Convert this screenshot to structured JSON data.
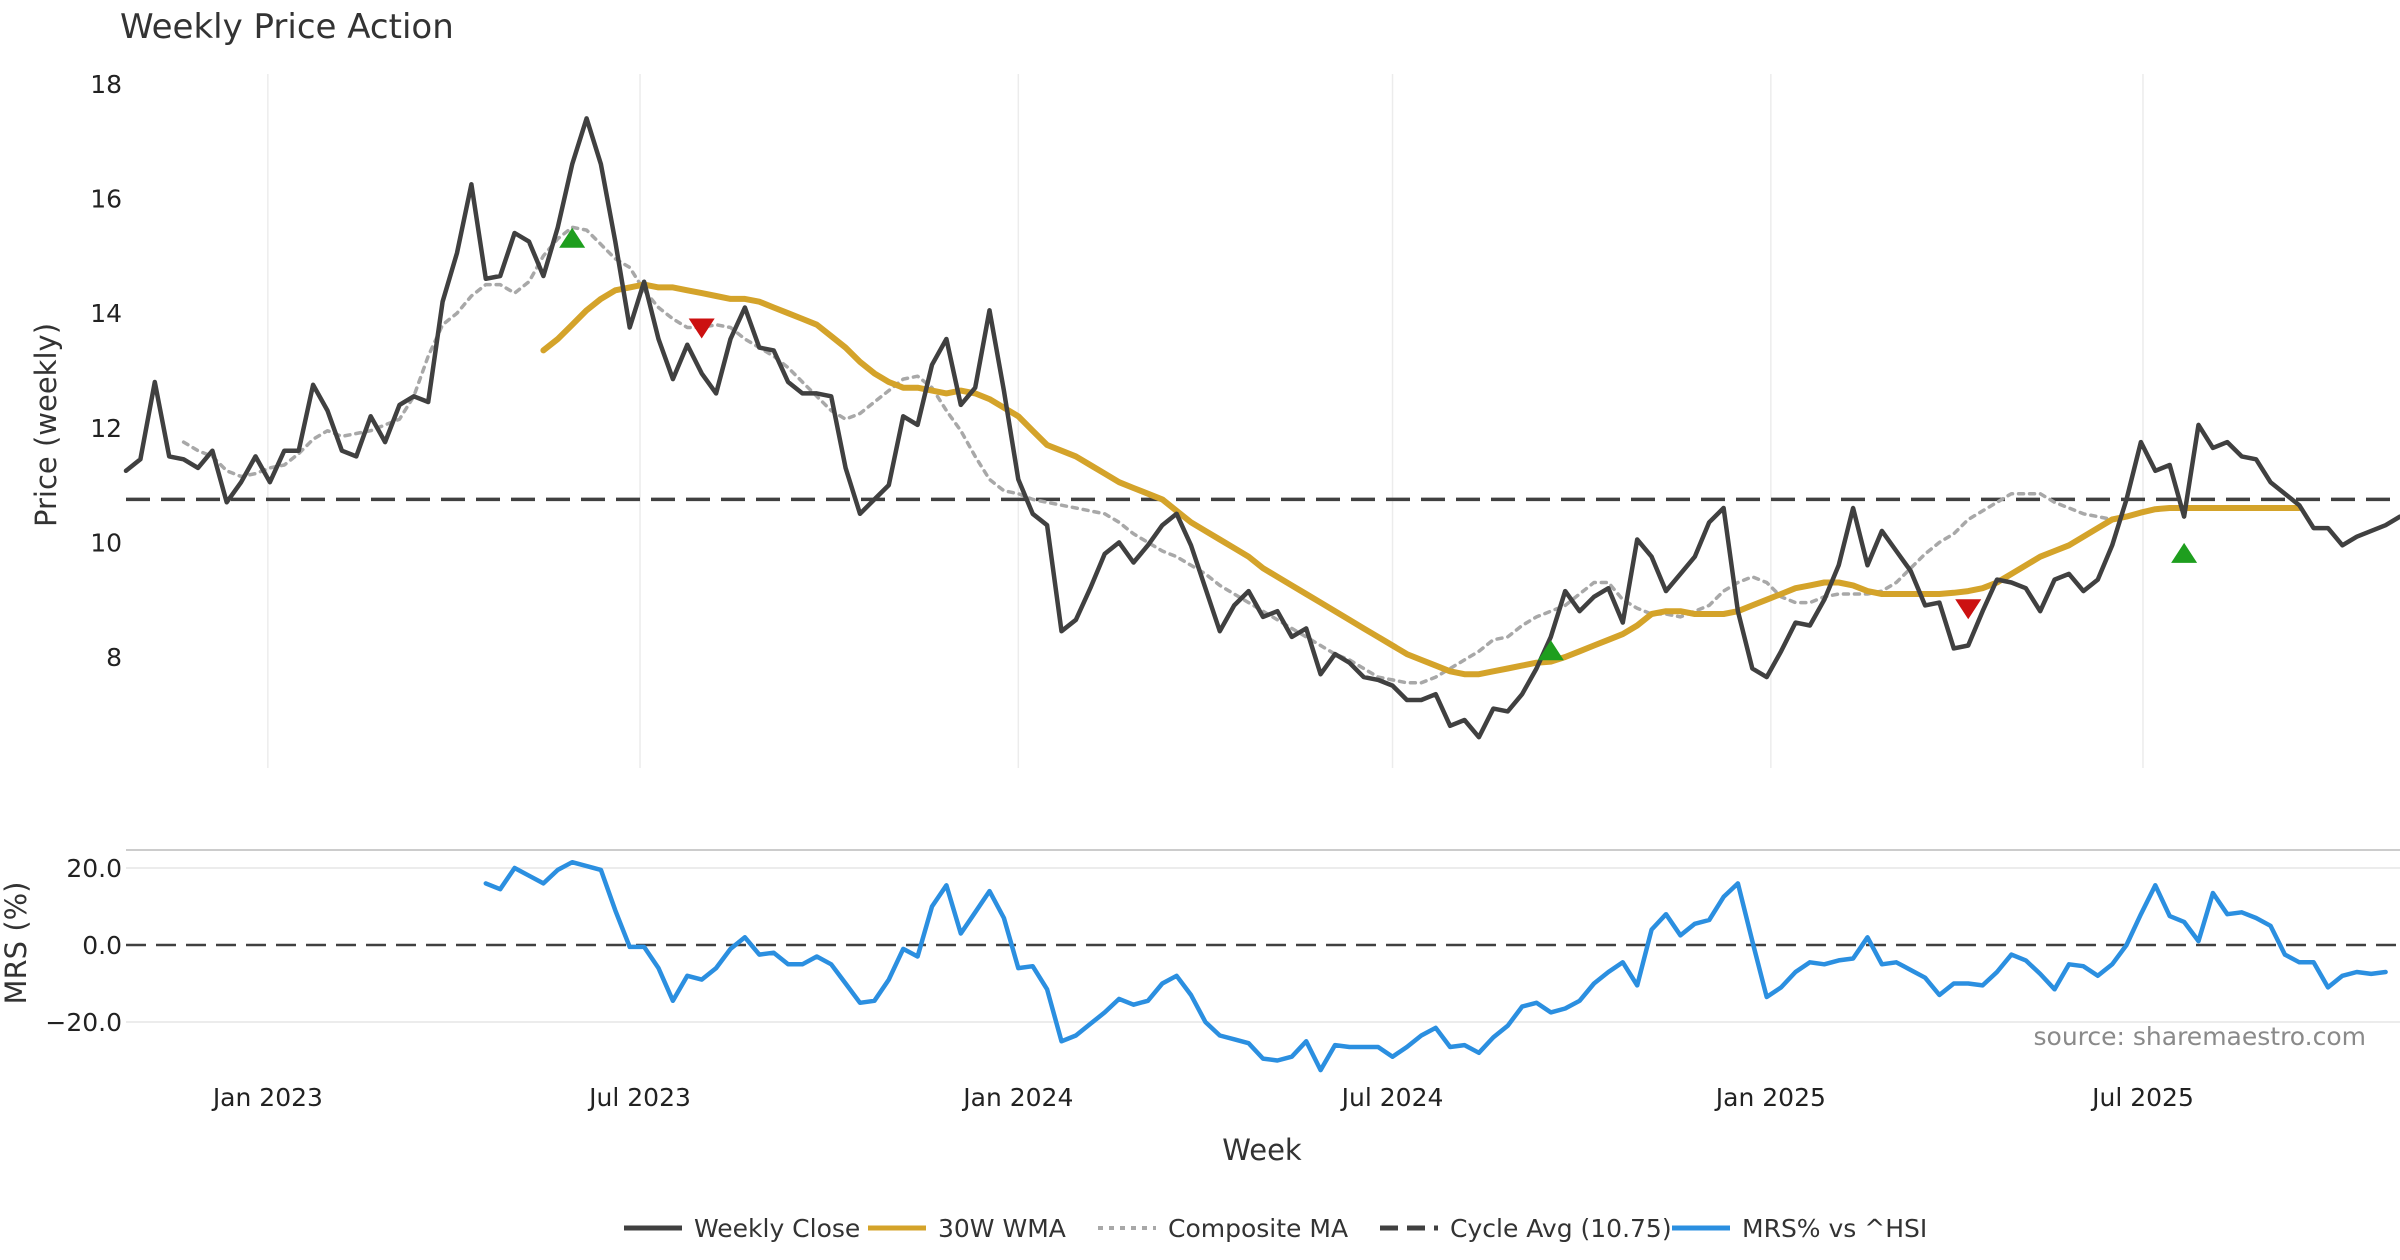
{
  "chart_data": [
    {
      "type": "line",
      "title": "Weekly Price Action",
      "ylabel": "Price (weekly)",
      "xlabel": "Week",
      "ylim": [
        6,
        18
      ],
      "yticks": [
        8,
        10,
        12,
        14,
        16,
        18
      ],
      "x_start": "2022-10-24",
      "x_step_days": 7,
      "x_tick_dates": [
        "2023-01-01",
        "2023-07-01",
        "2024-01-01",
        "2024-07-01",
        "2025-01-01",
        "2025-07-01"
      ],
      "x_tick_labels": [
        "Jan 2023",
        "Jul 2023",
        "Jan 2024",
        "Jul 2024",
        "Jan 2025",
        "Jul 2025"
      ],
      "x_end": "2025-11-03",
      "cycle_avg": 10.75,
      "series": [
        {
          "name": "Weekly Close",
          "color": "#404040",
          "values": [
            11.25,
            11.45,
            12.8,
            11.5,
            11.45,
            11.3,
            11.6,
            10.7,
            11.05,
            11.5,
            11.05,
            11.6,
            11.6,
            12.75,
            12.3,
            11.6,
            11.5,
            12.2,
            11.75,
            12.4,
            12.55,
            12.45,
            14.2,
            15.05,
            16.25,
            14.6,
            14.65,
            15.4,
            15.25,
            14.65,
            15.5,
            16.6,
            17.4,
            16.6,
            15.25,
            13.75,
            14.55,
            13.55,
            12.85,
            13.45,
            12.95,
            12.6,
            13.55,
            14.1,
            13.4,
            13.35,
            12.8,
            12.6,
            12.6,
            12.55,
            11.3,
            10.5,
            10.75,
            11.0,
            12.2,
            12.05,
            13.1,
            13.55,
            12.4,
            12.7,
            14.05,
            12.65,
            11.1,
            10.5,
            10.3,
            8.45,
            8.65,
            9.2,
            9.8,
            10.0,
            9.65,
            9.95,
            10.3,
            10.5,
            9.95,
            9.2,
            8.45,
            8.9,
            9.15,
            8.7,
            8.8,
            8.35,
            8.5,
            7.7,
            8.05,
            7.9,
            7.65,
            7.6,
            7.5,
            7.25,
            7.25,
            7.35,
            6.8,
            6.9,
            6.6,
            7.1,
            7.05,
            7.35,
            7.8,
            8.35,
            9.15,
            8.8,
            9.05,
            9.2,
            8.6,
            10.05,
            9.75,
            9.15,
            9.45,
            9.75,
            10.35,
            10.6,
            8.8,
            7.8,
            7.65,
            8.1,
            8.6,
            8.55,
            9.0,
            9.6,
            10.6,
            9.6,
            10.2,
            9.85,
            9.5,
            8.9,
            8.95,
            8.15,
            8.2,
            8.8,
            9.35,
            9.3,
            9.2,
            8.8,
            9.35,
            9.45,
            9.15,
            9.35,
            9.95,
            10.75,
            11.75,
            11.25,
            11.35,
            10.45,
            12.05,
            11.65,
            11.75,
            11.5,
            11.45,
            11.05,
            10.85,
            10.65,
            10.25,
            10.25,
            9.95,
            10.1,
            10.2,
            10.3,
            10.45
          ]
        },
        {
          "name": "30W WMA",
          "color": "#d4a32a",
          "start_index": 29,
          "values": [
            13.35,
            13.55,
            13.8,
            14.05,
            14.25,
            14.4,
            14.45,
            14.5,
            14.45,
            14.45,
            14.4,
            14.35,
            14.3,
            14.25,
            14.25,
            14.2,
            14.1,
            14.0,
            13.9,
            13.8,
            13.6,
            13.4,
            13.15,
            12.95,
            12.8,
            12.7,
            12.7,
            12.65,
            12.6,
            12.65,
            12.6,
            12.5,
            12.35,
            12.2,
            11.95,
            11.7,
            11.6,
            11.5,
            11.35,
            11.2,
            11.05,
            10.95,
            10.85,
            10.75,
            10.55,
            10.35,
            10.2,
            10.05,
            9.9,
            9.75,
            9.55,
            9.4,
            9.25,
            9.1,
            8.95,
            8.8,
            8.65,
            8.5,
            8.35,
            8.2,
            8.05,
            7.95,
            7.85,
            7.75,
            7.7,
            7.7,
            7.75,
            7.8,
            7.85,
            7.9,
            7.92,
            8.0,
            8.1,
            8.2,
            8.3,
            8.4,
            8.55,
            8.75,
            8.8,
            8.8,
            8.75,
            8.75,
            8.75,
            8.8,
            8.9,
            9.0,
            9.1,
            9.2,
            9.25,
            9.3,
            9.3,
            9.25,
            9.15,
            9.1,
            9.1,
            9.1,
            9.1,
            9.1,
            9.12,
            9.15,
            9.2,
            9.3,
            9.45,
            9.6,
            9.75,
            9.85,
            9.95,
            10.1,
            10.25,
            10.4,
            10.45,
            10.52,
            10.58,
            10.6,
            10.6,
            10.6,
            10.6,
            10.6,
            10.6,
            10.6,
            10.6,
            10.6,
            10.6
          ]
        },
        {
          "name": "Composite MA",
          "color": "#a8a8a8",
          "start_index": 4,
          "values": [
            11.75,
            11.6,
            11.5,
            11.25,
            11.15,
            11.2,
            11.3,
            11.35,
            11.55,
            11.8,
            11.95,
            11.85,
            11.9,
            11.95,
            12.05,
            12.15,
            12.55,
            13.25,
            13.8,
            14.0,
            14.3,
            14.5,
            14.5,
            14.35,
            14.55,
            15.0,
            15.3,
            15.5,
            15.45,
            15.2,
            14.95,
            14.8,
            14.4,
            14.1,
            13.9,
            13.75,
            13.75,
            13.8,
            13.75,
            13.55,
            13.4,
            13.25,
            13.05,
            12.8,
            12.55,
            12.3,
            12.15,
            12.25,
            12.45,
            12.65,
            12.85,
            12.9,
            12.7,
            12.3,
            11.95,
            11.5,
            11.1,
            10.9,
            10.85,
            10.75,
            10.7,
            10.65,
            10.6,
            10.55,
            10.5,
            10.35,
            10.15,
            10.0,
            9.85,
            9.75,
            9.6,
            9.45,
            9.25,
            9.1,
            8.95,
            8.8,
            8.65,
            8.5,
            8.35,
            8.2,
            8.05,
            7.95,
            7.8,
            7.65,
            7.6,
            7.55,
            7.55,
            7.65,
            7.8,
            7.95,
            8.1,
            8.3,
            8.35,
            8.55,
            8.7,
            8.8,
            8.9,
            9.1,
            9.3,
            9.3,
            9.0,
            8.85,
            8.75,
            8.75,
            8.7,
            8.8,
            8.9,
            9.15,
            9.3,
            9.4,
            9.3,
            9.05,
            8.95,
            8.95,
            9.05,
            9.1,
            9.1,
            9.1,
            9.15,
            9.3,
            9.55,
            9.8,
            10.0,
            10.15,
            10.4,
            10.55,
            10.7,
            10.85,
            10.85,
            10.85,
            10.7,
            10.6,
            10.5,
            10.45,
            10.4
          ]
        }
      ],
      "markers": [
        {
          "type": "buy",
          "index": 31,
          "value": 15.3,
          "color": "#1e9e1e"
        },
        {
          "type": "sell",
          "index": 40,
          "value": 13.75,
          "color": "#cc1111"
        },
        {
          "type": "buy",
          "index": 99,
          "value": 8.1,
          "color": "#1e9e1e"
        },
        {
          "type": "sell",
          "index": 128,
          "value": 8.85,
          "color": "#cc1111"
        },
        {
          "type": "buy",
          "index": 143,
          "value": 9.8,
          "color": "#1e9e1e"
        }
      ]
    },
    {
      "type": "line",
      "ylabel": "MRS (%)",
      "ylim": [
        -33,
        25
      ],
      "yticks": [
        20,
        0,
        -20
      ],
      "ytick_labels": [
        "20.0",
        "0.0",
        "−20.0"
      ],
      "zero_line": 0,
      "series": [
        {
          "name": "MRS% vs ^HSI",
          "color": "#2b8fe0",
          "start_index": 25,
          "values": [
            16.0,
            14.5,
            20.0,
            18.0,
            16.0,
            19.5,
            21.5,
            20.5,
            19.5,
            9.0,
            -0.5,
            -0.5,
            -6.0,
            -14.5,
            -8.0,
            -9.0,
            -6.0,
            -1.0,
            2.0,
            -2.5,
            -2.0,
            -5.0,
            -5.0,
            -3.0,
            -5.0,
            -10.0,
            -15.0,
            -14.5,
            -9.0,
            -1.0,
            -3.0,
            10.0,
            15.5,
            3.0,
            8.5,
            14.0,
            7.0,
            -6.0,
            -5.5,
            -11.5,
            -25.0,
            -23.5,
            -20.5,
            -17.5,
            -14.0,
            -15.5,
            -14.5,
            -10.0,
            -8.0,
            -13.0,
            -20.0,
            -23.5,
            -24.5,
            -25.5,
            -29.5,
            -30.0,
            -29.0,
            -25.0,
            -32.5,
            -26.0,
            -26.5,
            -26.5,
            -26.5,
            -29.0,
            -26.5,
            -23.5,
            -21.5,
            -26.5,
            -26.0,
            -28.0,
            -24.0,
            -21.0,
            -16.0,
            -15.0,
            -17.5,
            -16.5,
            -14.5,
            -10.0,
            -7.0,
            -4.5,
            -10.5,
            4.0,
            8.0,
            2.5,
            5.5,
            6.5,
            12.5,
            16.0,
            1.0,
            -13.5,
            -11.0,
            -7.0,
            -4.5,
            -5.0,
            -4.0,
            -3.5,
            2.0,
            -5.0,
            -4.5,
            -6.5,
            -8.5,
            -13.0,
            -10.0,
            -10.0,
            -10.5,
            -7.0,
            -2.5,
            -4.0,
            -7.5,
            -11.5,
            -5.0,
            -5.5,
            -8.0,
            -5.0,
            0.0,
            8.0,
            15.5,
            7.5,
            6.0,
            1.0,
            13.5,
            8.0,
            8.5,
            7.0,
            5.0,
            -2.5,
            -4.5,
            -4.5,
            -11.0,
            -8.0,
            -7.0,
            -7.5,
            -7.0
          ]
        }
      ]
    }
  ],
  "legend": {
    "items": [
      {
        "label": "Weekly Close",
        "color": "#404040",
        "style": "solid"
      },
      {
        "label": "30W WMA",
        "color": "#d4a32a",
        "style": "solid"
      },
      {
        "label": "Composite MA",
        "color": "#a8a8a8",
        "style": "dotted"
      },
      {
        "label": "Cycle Avg (10.75)",
        "color": "#404040",
        "style": "dashed"
      },
      {
        "label": "MRS% vs ^HSI",
        "color": "#2b8fe0",
        "style": "solid"
      }
    ]
  },
  "source_text": "source: sharemaestro.com"
}
